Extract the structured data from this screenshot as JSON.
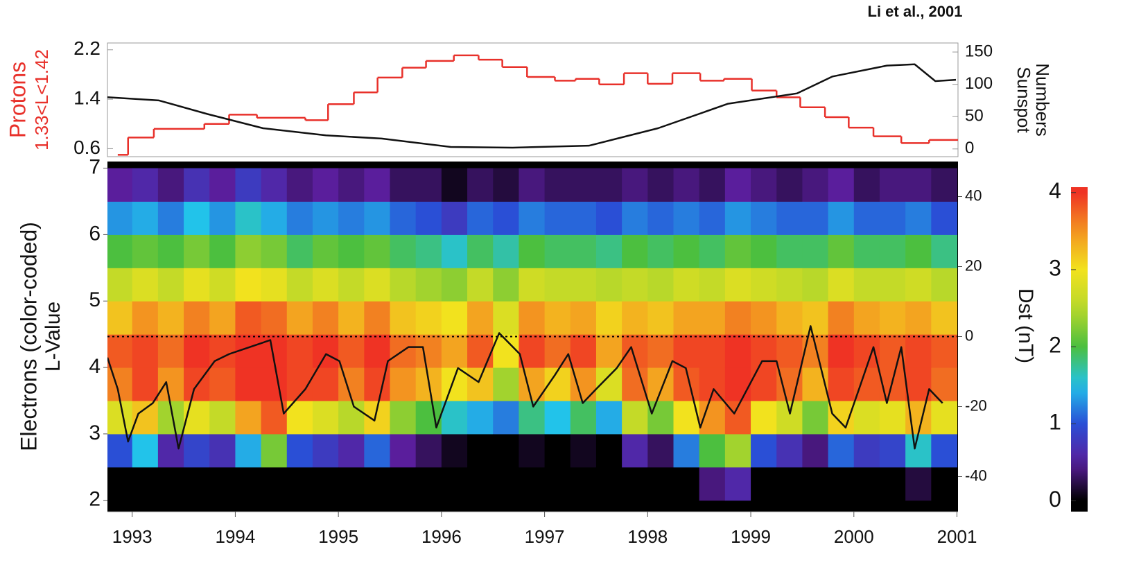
{
  "chart_data": [
    {
      "type": "line",
      "annotation": "Li et al., 2001",
      "ylabel": "Protons",
      "ylabel_sub": "1.33<L<1.42",
      "ylabel_color": "#e8302a",
      "y2label": "Sunspot",
      "y2label_sub": "Numbers",
      "xlim": [
        1992.76,
        2001.01
      ],
      "ylim": [
        0.47,
        2.31
      ],
      "yticks": [
        0.6,
        1.4,
        2.2
      ],
      "y2lim": [
        -12,
        164
      ],
      "y2ticks": [
        0,
        50,
        100,
        150
      ],
      "series": [
        {
          "color": "#e8302a",
          "drawstyle": "steps-post",
          "x": [
            1992.86,
            1992.96,
            1993.21,
            1993.7,
            1993.94,
            1994.21,
            1994.68,
            1994.9,
            1995.15,
            1995.38,
            1995.62,
            1995.85,
            1996.12,
            1996.36,
            1996.59,
            1996.83,
            1997.1,
            1997.3,
            1997.53,
            1997.77,
            1998.0,
            1998.24,
            1998.51,
            1998.74,
            1999.01,
            1999.25,
            1999.48,
            1999.72,
            1999.95,
            2000.19,
            2000.46,
            2000.73
          ],
          "values": [
            0.5,
            0.78,
            0.92,
            1.0,
            1.15,
            1.1,
            1.06,
            1.32,
            1.51,
            1.75,
            1.91,
            2.02,
            2.11,
            2.04,
            1.92,
            1.76,
            1.7,
            1.73,
            1.64,
            1.82,
            1.65,
            1.82,
            1.7,
            1.73,
            1.54,
            1.43,
            1.27,
            1.11,
            0.94,
            0.8,
            0.69,
            0.74
          ]
        },
        {
          "color": "#111111",
          "axis": "y2",
          "x": [
            1992.76,
            1993.26,
            1993.73,
            1994.27,
            1994.88,
            1995.42,
            1996.09,
            1996.69,
            1997.43,
            1998.1,
            1998.78,
            1999.45,
            1999.79,
            2000.32,
            2000.59,
            2000.79,
            2000.99
          ],
          "values": [
            80,
            75,
            54,
            32,
            21,
            16,
            3,
            2,
            5,
            32,
            70,
            86,
            112,
            129,
            131,
            105,
            107
          ]
        }
      ]
    },
    {
      "type": "heatmap",
      "ylabel": "Electrons (color-coded)",
      "ylabel_sub": "L-Value",
      "y2label": "Dst (nT)",
      "xlim": [
        1992.76,
        2001.01
      ],
      "xticks": [
        1993,
        1994,
        1995,
        1996,
        1997,
        1998,
        1999,
        2000,
        2001
      ],
      "ylim": [
        1.83,
        7.1
      ],
      "yticks": [
        2,
        3,
        4,
        5,
        6,
        7
      ],
      "y2lim": [
        -50,
        50
      ],
      "y2ticks": [
        -40,
        -20,
        0,
        20,
        40
      ],
      "zero_line": true,
      "colorscale": [
        "#000000",
        "#5a1e9c",
        "#2a4fd6",
        "#22c3ea",
        "#4cbf3f",
        "#b8d82a",
        "#f2e21e",
        "#f39420",
        "#ef3324"
      ],
      "zlim": [
        0,
        4
      ],
      "colorbar": {
        "lim": [
          -0.14,
          4.07
        ],
        "ticks": [
          0,
          1,
          2,
          3,
          4
        ]
      },
      "x_edges": [
        1992.75,
        1993.0,
        1993.25,
        1993.5,
        1993.75,
        1994.0,
        1994.25,
        1994.5,
        1994.75,
        1995.0,
        1995.25,
        1995.5,
        1995.75,
        1996.0,
        1996.25,
        1996.5,
        1996.75,
        1997.0,
        1997.25,
        1997.5,
        1997.75,
        1998.0,
        1998.25,
        1998.5,
        1998.75,
        1999.0,
        1999.25,
        1999.5,
        1999.75,
        2000.0,
        2000.25,
        2000.5,
        2000.75,
        2001.0
      ],
      "y_edges": [
        2.0,
        2.5,
        3.0,
        3.5,
        4.0,
        4.5,
        5.0,
        5.5,
        6.0,
        6.5,
        7.0
      ],
      "z": [
        [
          0,
          1.0,
          2.8,
          3.6,
          3.8,
          3.2,
          2.6,
          2.0,
          1.3,
          0.5
        ],
        [
          0,
          1.5,
          3.2,
          3.9,
          3.9,
          3.5,
          2.8,
          2.1,
          1.4,
          0.6
        ],
        [
          0,
          0.6,
          2.4,
          3.5,
          3.7,
          3.3,
          2.6,
          2.0,
          1.2,
          0.4
        ],
        [
          0,
          0.9,
          2.9,
          3.9,
          4.0,
          3.6,
          2.9,
          2.2,
          1.5,
          0.7
        ],
        [
          0,
          0.7,
          2.6,
          3.8,
          3.9,
          3.4,
          2.7,
          2.0,
          1.3,
          0.5
        ],
        [
          0,
          1.4,
          3.4,
          4.0,
          4.0,
          3.8,
          3.0,
          2.3,
          1.6,
          0.8
        ],
        [
          0,
          2.2,
          3.8,
          4.0,
          4.0,
          3.7,
          2.9,
          2.2,
          1.4,
          0.6
        ],
        [
          0,
          1.0,
          3.0,
          3.9,
          3.9,
          3.4,
          2.6,
          1.9,
          1.2,
          0.4
        ],
        [
          0,
          0.8,
          2.8,
          3.9,
          4.0,
          3.6,
          2.8,
          2.1,
          1.3,
          0.5
        ],
        [
          0,
          0.6,
          2.5,
          3.6,
          3.8,
          3.3,
          2.6,
          2.0,
          1.2,
          0.4
        ],
        [
          0,
          1.1,
          3.1,
          3.9,
          4.0,
          3.6,
          2.8,
          2.1,
          1.3,
          0.5
        ],
        [
          0,
          0.5,
          2.3,
          3.5,
          3.7,
          3.2,
          2.5,
          1.9,
          1.1,
          0.3
        ],
        [
          0,
          0.3,
          2.0,
          3.3,
          3.6,
          3.1,
          2.4,
          1.8,
          1.0,
          0.3
        ],
        [
          0,
          0.1,
          1.6,
          3.0,
          3.4,
          3.0,
          2.3,
          1.6,
          0.8,
          0.1
        ],
        [
          0,
          0.0,
          1.4,
          3.2,
          3.8,
          3.4,
          2.6,
          1.9,
          1.1,
          0.3
        ],
        [
          0,
          0.0,
          1.2,
          2.4,
          3.0,
          2.8,
          2.3,
          1.7,
          1.0,
          0.2
        ],
        [
          0,
          0.1,
          1.8,
          3.4,
          3.9,
          3.5,
          2.7,
          2.0,
          1.2,
          0.4
        ],
        [
          0,
          0.0,
          1.5,
          3.1,
          3.7,
          3.3,
          2.6,
          1.9,
          1.1,
          0.3
        ],
        [
          0,
          0.1,
          1.9,
          3.5,
          3.9,
          3.4,
          2.6,
          1.9,
          1.1,
          0.3
        ],
        [
          0,
          0.0,
          1.4,
          2.8,
          3.4,
          3.1,
          2.5,
          1.8,
          1.0,
          0.3
        ],
        [
          0,
          0.6,
          2.6,
          3.7,
          3.8,
          3.3,
          2.6,
          2.0,
          1.2,
          0.4
        ],
        [
          0,
          0.3,
          2.2,
          3.4,
          3.7,
          3.2,
          2.5,
          1.9,
          1.1,
          0.3
        ],
        [
          0,
          1.2,
          3.0,
          3.8,
          3.9,
          3.4,
          2.7,
          2.0,
          1.2,
          0.4
        ],
        [
          0.4,
          2.0,
          3.5,
          3.9,
          3.9,
          3.4,
          2.6,
          1.9,
          1.1,
          0.3
        ],
        [
          0.6,
          2.4,
          3.8,
          4.0,
          4.0,
          3.6,
          2.8,
          2.1,
          1.3,
          0.5
        ],
        [
          0,
          1.0,
          3.0,
          3.9,
          3.9,
          3.5,
          2.7,
          2.0,
          1.2,
          0.4
        ],
        [
          0,
          0.7,
          2.7,
          3.7,
          3.8,
          3.3,
          2.6,
          1.9,
          1.1,
          0.3
        ],
        [
          0,
          0.4,
          2.2,
          3.3,
          3.6,
          3.2,
          2.5,
          1.9,
          1.1,
          0.4
        ],
        [
          0,
          1.1,
          3.1,
          3.9,
          4.0,
          3.6,
          2.8,
          2.1,
          1.3,
          0.5
        ],
        [
          0,
          0.8,
          2.8,
          3.8,
          3.9,
          3.4,
          2.6,
          1.9,
          1.1,
          0.3
        ],
        [
          0,
          0.9,
          2.9,
          3.8,
          3.8,
          3.3,
          2.6,
          1.9,
          1.1,
          0.4
        ],
        [
          0.2,
          1.6,
          3.3,
          3.9,
          3.9,
          3.4,
          2.7,
          2.0,
          1.2,
          0.4
        ],
        [
          0,
          1.0,
          2.9,
          3.7,
          3.8,
          3.2,
          2.5,
          1.8,
          1.0,
          0.3
        ]
      ],
      "series": [
        {
          "color": "#111111",
          "axis": "y2",
          "x": [
            1992.76,
            1992.86,
            1992.96,
            1993.06,
            1993.2,
            1993.33,
            1993.45,
            1993.6,
            1993.8,
            1993.94,
            1994.14,
            1994.34,
            1994.47,
            1994.68,
            1994.88,
            1995.01,
            1995.15,
            1995.35,
            1995.48,
            1995.68,
            1995.82,
            1995.95,
            1996.16,
            1996.36,
            1996.56,
            1996.76,
            1996.89,
            1997.1,
            1997.23,
            1997.37,
            1997.5,
            1997.7,
            1997.84,
            1998.04,
            1998.24,
            1998.37,
            1998.51,
            1998.64,
            1998.84,
            1999.11,
            1999.25,
            1999.38,
            1999.58,
            1999.79,
            1999.92,
            2000.05,
            2000.19,
            2000.32,
            2000.46,
            2000.59,
            2000.73,
            2000.86
          ],
          "values": [
            -6,
            -15,
            -30,
            -22,
            -19,
            -13,
            -32,
            -15,
            -7,
            -5,
            -3,
            -1,
            -22,
            -15,
            -5,
            -7,
            -20,
            -24,
            -7,
            -3,
            -3,
            -26,
            -9,
            -13,
            1,
            -5,
            -20,
            -11,
            -5,
            -19,
            -15,
            -9,
            -3,
            -22,
            -7,
            -9,
            -26,
            -15,
            -22,
            -7,
            -7,
            -22,
            3,
            -22,
            -26,
            -15,
            -3,
            -19,
            -3,
            -32,
            -15,
            -19
          ]
        }
      ]
    }
  ]
}
